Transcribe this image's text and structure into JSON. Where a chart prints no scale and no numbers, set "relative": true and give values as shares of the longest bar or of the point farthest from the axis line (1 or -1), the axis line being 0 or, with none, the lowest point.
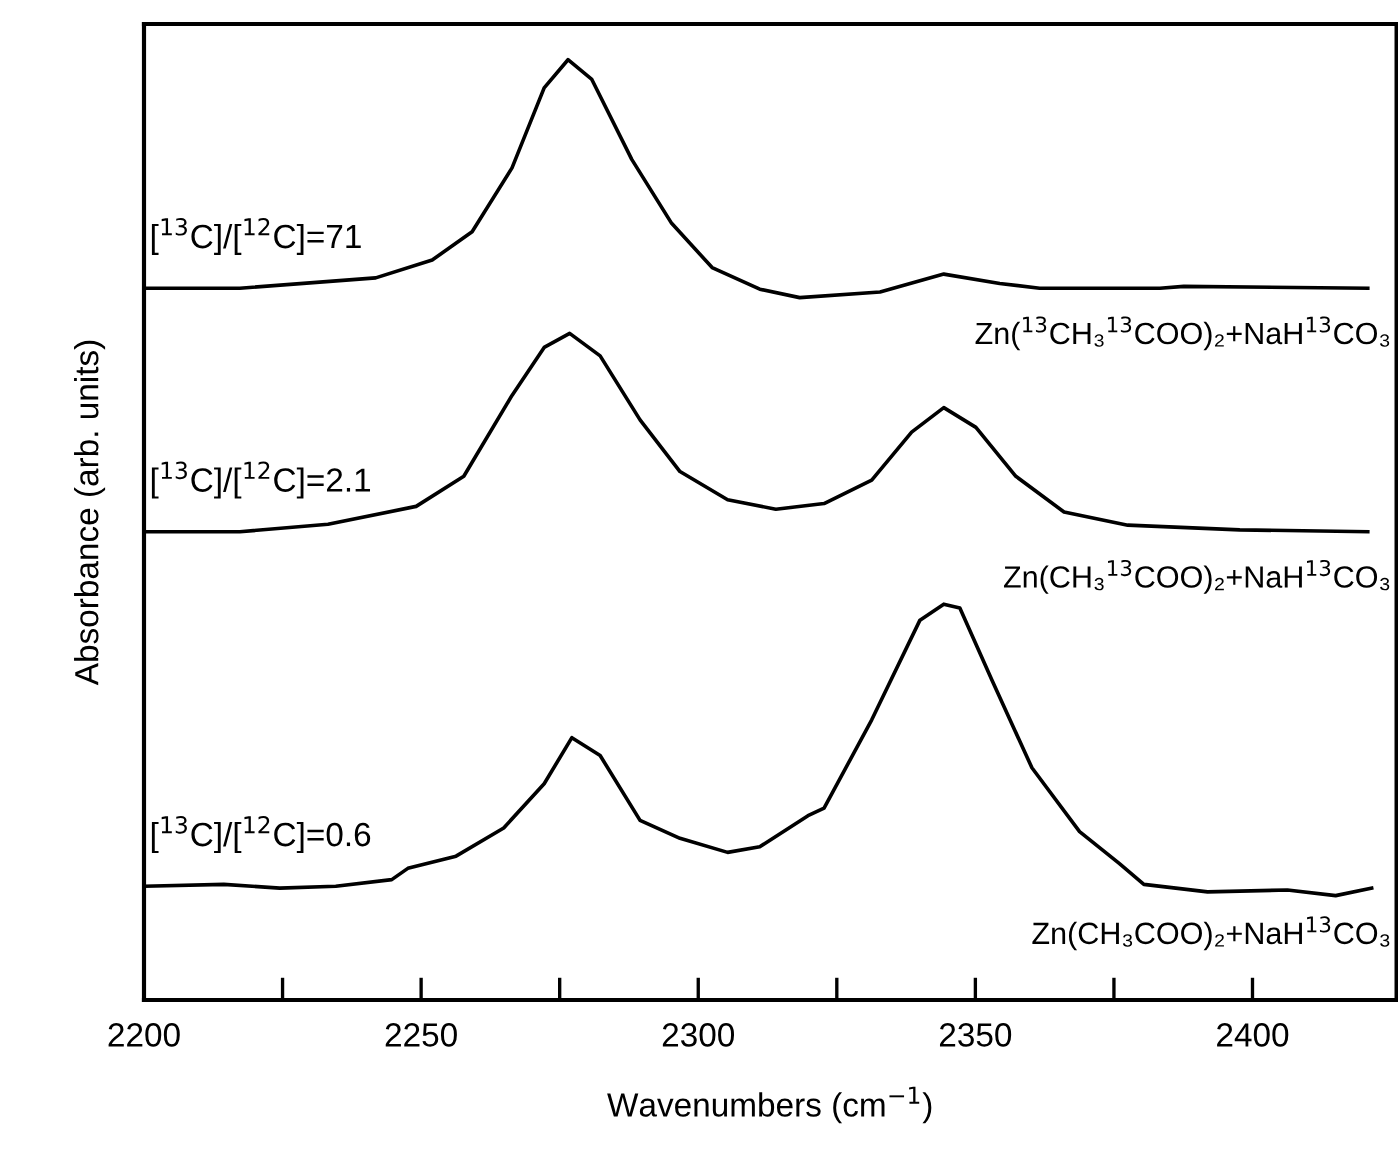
{
  "chart_data": {
    "type": "line",
    "relative": true,
    "xlabel": "Wavenumbers (cm$^{−1}$)",
    "ylabel": "Absorbance (arb. units)",
    "xlim": [
      2200,
      2426
    ],
    "xticks": [
      2200,
      {
        "value": 2225,
        "label": null
      },
      2250,
      {
        "value": 2275,
        "label": null
      },
      2300,
      {
        "value": 2325,
        "label": null
      },
      2350,
      {
        "value": 2375,
        "label": null
      },
      2400
    ],
    "grid": false,
    "legend": false,
    "marker": "none",
    "line_style": "solid",
    "series": [
      {
        "name": "[$^{13}$C]/[$^{12}$C]=71",
        "color": "#000000",
        "x": [
          2200,
          2217.3,
          2241.8,
          2252,
          2259.2,
          2266.4,
          2272.2,
          2276.5,
          2280.8,
          2288,
          2295.2,
          2302.5,
          2311.1,
          2318.3,
          2332.8,
          2344.3,
          2354.4,
          2361.6,
          2383.3,
          2387.6,
          2420.8
        ],
        "values": [
          0.757,
          0.757,
          0.768,
          0.787,
          0.817,
          0.885,
          0.97,
          1.0,
          0.979,
          0.894,
          0.826,
          0.779,
          0.756,
          0.747,
          0.753,
          0.772,
          0.762,
          0.757,
          0.757,
          0.759,
          0.757
        ]
      },
      {
        "name": "[$^{13}$C]/[$^{12}$C]=2.1",
        "color": "#000000",
        "x": [
          2200,
          2217.3,
          2233.2,
          2249.1,
          2257.7,
          2266.4,
          2272.2,
          2276.8,
          2282.3,
          2289.5,
          2296.7,
          2305.3,
          2314,
          2322.7,
          2331.3,
          2338.5,
          2344.3,
          2350.1,
          2357.3,
          2366,
          2377.5,
          2397.7,
          2420.8
        ],
        "values": [
          0.498,
          0.498,
          0.506,
          0.525,
          0.557,
          0.643,
          0.694,
          0.709,
          0.685,
          0.617,
          0.562,
          0.532,
          0.522,
          0.528,
          0.553,
          0.604,
          0.63,
          0.609,
          0.557,
          0.519,
          0.505,
          0.5,
          0.498
        ]
      },
      {
        "name": "[$^{13}$C]/[$^{12}$C]=0.6",
        "color": "#000000",
        "x": [
          2200,
          2214.4,
          2224.5,
          2234.6,
          2244.7,
          2247.6,
          2256.3,
          2264.9,
          2272.2,
          2277.2,
          2282.3,
          2289.5,
          2296.7,
          2305.3,
          2311.1,
          2319.8,
          2322.7,
          2331.3,
          2340,
          2344.3,
          2347.2,
          2353,
          2360.2,
          2368.8,
          2376,
          2380.4,
          2391.9,
          2406.3,
          2415,
          2421.5
        ],
        "values": [
          0.121,
          0.123,
          0.119,
          0.121,
          0.128,
          0.14,
          0.153,
          0.183,
          0.23,
          0.279,
          0.26,
          0.191,
          0.172,
          0.157,
          0.163,
          0.196,
          0.204,
          0.298,
          0.404,
          0.421,
          0.417,
          0.34,
          0.247,
          0.179,
          0.145,
          0.123,
          0.115,
          0.117,
          0.111,
          0.119
        ]
      }
    ],
    "annotations": [
      "Zn($^{13}$CH₃$^{13}$COO)₂+NaH$^{13}$CO₃",
      "Zn(CH₃$^{13}$COO)₂+NaH$^{13}$CO₃",
      "Zn(CH₃COO)₂+NaH$^{13}$CO₃"
    ]
  }
}
